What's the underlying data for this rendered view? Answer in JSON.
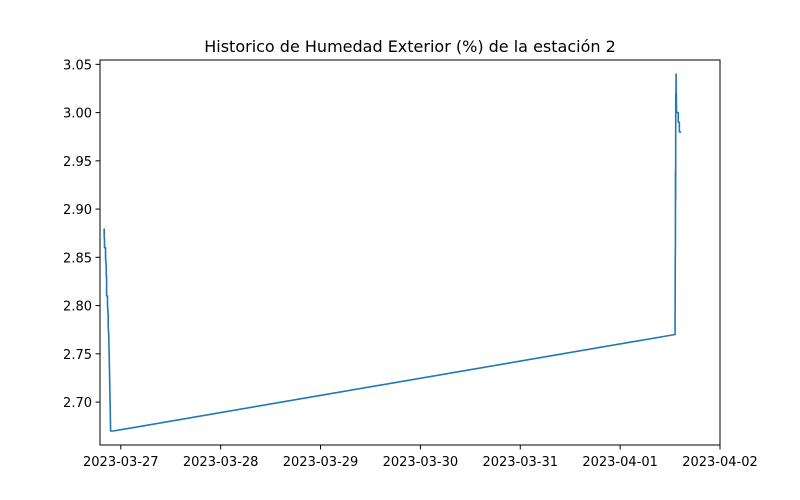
{
  "chart_data": {
    "type": "line",
    "title": "Historico de Humedad Exterior (%) de la estación 2",
    "xlabel": "",
    "ylabel": "",
    "x_tick_labels": [
      "2023-03-27",
      "2023-03-28",
      "2023-03-29",
      "2023-03-30",
      "2023-03-31",
      "2023-04-01",
      "2023-04-02"
    ],
    "y_tick_labels": [
      "2.70",
      "2.75",
      "2.80",
      "2.85",
      "2.90",
      "2.95",
      "3.00",
      "3.05"
    ],
    "y_ticks": [
      2.7,
      2.75,
      2.8,
      2.85,
      2.9,
      2.95,
      3.0,
      3.05
    ],
    "ylim": [
      2.6555,
      3.0545
    ],
    "xlim": [
      "2023-03-26T19:00",
      "2023-04-02T00:00"
    ],
    "grid": false,
    "line_color": "#1f77b4",
    "series": [
      {
        "x": [
          "2023-03-26T20:00",
          "2023-03-26T20:01",
          "2023-03-26T20:05",
          "2023-03-26T20:05",
          "2023-03-26T20:20",
          "2023-03-26T20:20",
          "2023-03-26T20:30",
          "2023-03-26T20:31",
          "2023-03-26T20:35",
          "2023-03-26T20:35",
          "2023-03-26T20:48",
          "2023-03-26T20:48",
          "2023-03-26T20:58",
          "2023-03-26T20:58",
          "2023-03-26T21:05",
          "2023-03-26T21:06",
          "2023-03-26T21:12",
          "2023-03-26T21:15",
          "2023-03-26T21:25",
          "2023-03-26T21:33",
          "2023-03-26T21:40",
          "2023-03-26T21:45",
          "2023-03-26T21:50",
          "2023-03-26T21:52",
          "2023-03-26T21:56",
          "2023-03-26T22:10",
          "2023-04-01T13:12",
          "2023-04-01T13:15",
          "2023-04-01T13:17",
          "2023-04-01T13:18",
          "2023-04-01T13:20",
          "2023-04-01T13:21",
          "2023-04-01T13:22",
          "2023-04-01T13:25",
          "2023-04-01T13:27",
          "2023-04-01T13:28",
          "2023-04-01T13:30",
          "2023-04-01T13:31",
          "2023-04-01T13:33",
          "2023-04-01T13:37",
          "2023-04-01T13:40",
          "2023-04-01T13:43",
          "2023-04-01T13:58",
          "2023-04-01T13:58",
          "2023-04-01T14:14",
          "2023-04-01T14:14",
          "2023-04-01T14:20",
          "2023-04-01T14:20",
          "2023-04-01T14:40"
        ],
        "y": [
          2.88,
          2.87,
          2.87,
          2.86,
          2.86,
          2.85,
          2.84,
          2.83,
          2.83,
          2.81,
          2.81,
          2.8,
          2.79,
          2.78,
          2.77,
          2.77,
          2.75,
          2.74,
          2.7,
          2.67,
          2.67,
          2.67,
          2.67,
          2.67,
          2.67,
          2.67,
          2.77,
          2.85,
          2.86,
          2.94,
          2.91,
          2.95,
          3.02,
          3.01,
          3.04,
          3.0,
          3.02,
          3.01,
          3.0,
          3.0,
          3.0,
          3.0,
          3.0,
          2.99,
          2.99,
          2.98,
          2.98,
          2.98,
          2.98
        ]
      }
    ]
  }
}
